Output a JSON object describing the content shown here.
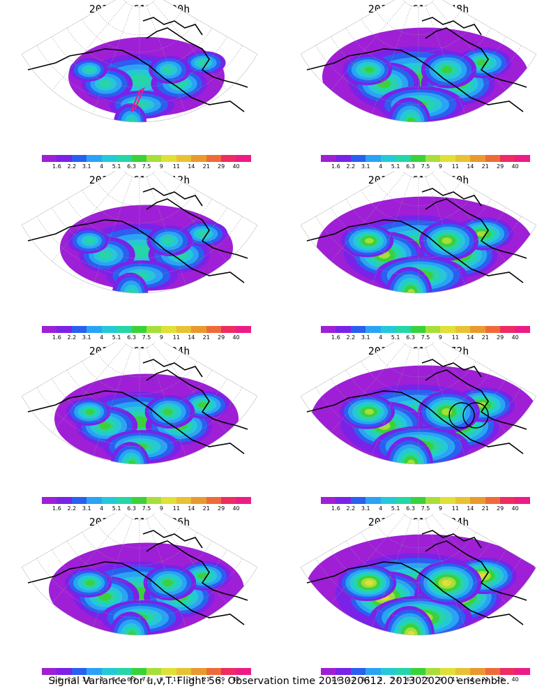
{
  "panels": [
    {
      "title": "2013020612 + 00h",
      "lead": "00h",
      "track": true,
      "circles": false,
      "intensity": 0.8
    },
    {
      "title": "2013020612 + 48h",
      "lead": "48h",
      "track": false,
      "circles": false,
      "intensity": 1.7
    },
    {
      "title": "2013020612 + 12h",
      "lead": "12h",
      "track": false,
      "circles": false,
      "intensity": 1.1
    },
    {
      "title": "2013020612 + 60h",
      "lead": "60h",
      "track": false,
      "circles": false,
      "intensity": 1.9
    },
    {
      "title": "2013020612 + 24h",
      "lead": "24h",
      "track": false,
      "circles": false,
      "intensity": 1.3
    },
    {
      "title": "2013020612 + 72h",
      "lead": "72h",
      "track": false,
      "circles": true,
      "intensity": 2.1
    },
    {
      "title": "2013020612 + 36h",
      "lead": "36h",
      "track": false,
      "circles": false,
      "intensity": 1.5
    },
    {
      "title": "2013020612 + 84h",
      "lead": "84h",
      "track": false,
      "circles": false,
      "intensity": 2.3
    }
  ],
  "colorbar": {
    "labels": [
      "1.6",
      "2.2",
      "3.1",
      "4",
      "5.1",
      "6.3",
      "7.5",
      "9",
      "11",
      "14",
      "21",
      "29",
      "40"
    ],
    "colors": [
      "#9f1fd6",
      "#7a22e8",
      "#2a5ff0",
      "#2aa3f5",
      "#25c8d8",
      "#25d6a6",
      "#3ad23a",
      "#a6df3a",
      "#e0e036",
      "#e8c234",
      "#e89a2e",
      "#ef6a3a",
      "#ee2b63",
      "#ec1c86"
    ]
  },
  "footer": "Signal Variance for u,v,T. Flight 56. Observation time 2013020612. 2013020200 ensemble.",
  "chart_data": {
    "type": "heatmap",
    "title": "Signal Variance for u,v,T. Flight 56. Observation time 2013020612. 2013020200 ensemble.",
    "init_time": "2013020612",
    "lead_times_h": [
      0,
      12,
      24,
      36,
      48,
      60,
      72,
      84
    ],
    "colorbar_levels": [
      1.6,
      2.2,
      3.1,
      4,
      5.1,
      6.3,
      7.5,
      9,
      11,
      14,
      21,
      29,
      40
    ],
    "colorbar_colors": [
      "#9f1fd6",
      "#7a22e8",
      "#2a5ff0",
      "#2aa3f5",
      "#25c8d8",
      "#25d6a6",
      "#3ad23a",
      "#a6df3a",
      "#e0e036",
      "#e8c234",
      "#e89a2e",
      "#ef6a3a",
      "#ee2b63",
      "#ec1c86"
    ]
  }
}
